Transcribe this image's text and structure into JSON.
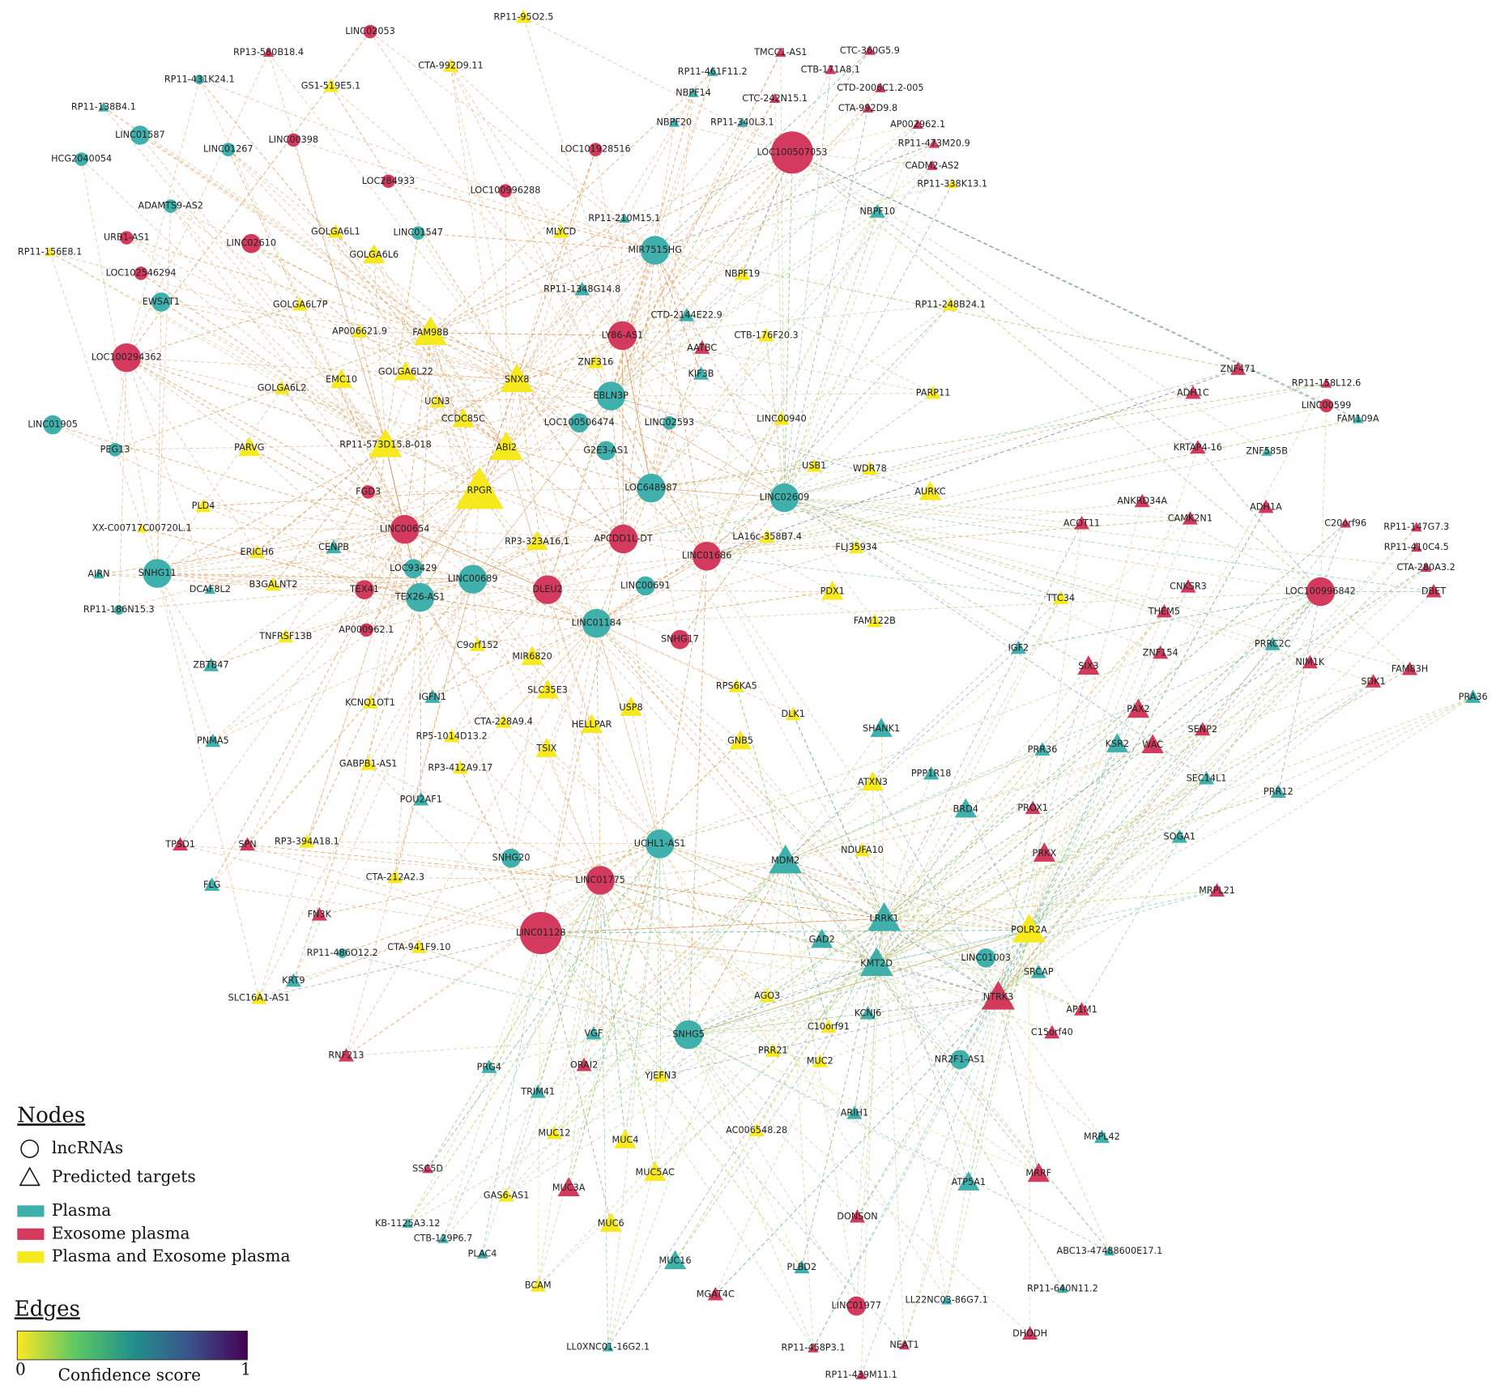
{
  "nodes": [
    {
      "label": "RP11-95O2.5"
    },
    {
      "label": "LINC02053"
    },
    {
      "label": "RP13-580B18.4"
    },
    {
      "label": "RP11-431K24.1"
    },
    {
      "label": "CTA-992D9.11"
    },
    {
      "label": "GS1-519E5.1"
    },
    {
      "label": "RP11-138B4.1"
    },
    {
      "label": "LINC01587"
    },
    {
      "label": "LINC01267"
    },
    {
      "label": "LINC00398"
    },
    {
      "label": "HCG2040054"
    },
    {
      "label": "LOC284933"
    },
    {
      "label": "LOC100996288"
    },
    {
      "label": "ADAMTS9-AS2"
    },
    {
      "label": "GOLGA6L1"
    },
    {
      "label": "LINC01547"
    },
    {
      "label": "MLYCD"
    },
    {
      "label": "URB1-AS1"
    },
    {
      "label": "LINC02610"
    },
    {
      "label": "GOLGA6L6"
    },
    {
      "label": "RP11-156E8.1"
    },
    {
      "label": "LOC102546294"
    },
    {
      "label": "EWSAT1"
    },
    {
      "label": "GOLGA6L7P"
    },
    {
      "label": "AP006621.9"
    },
    {
      "label": "FAM98B"
    },
    {
      "label": "LY86-AS1"
    },
    {
      "label": "LOC100294362"
    },
    {
      "label": "EMC10"
    },
    {
      "label": "GOLGA6L22"
    },
    {
      "label": "SNX8"
    },
    {
      "label": "GOLGA6L2"
    },
    {
      "label": "UCN3"
    },
    {
      "label": "CCDC85C"
    },
    {
      "label": "EBLN3P"
    },
    {
      "label": "LOC100506474"
    },
    {
      "label": "LINC02593"
    },
    {
      "label": "LINC01905"
    },
    {
      "label": "PEG13"
    },
    {
      "label": "PARVG"
    },
    {
      "label": "RP11-573D15.8-018"
    },
    {
      "label": "ABI2"
    },
    {
      "label": "G2E3-AS1"
    },
    {
      "label": "RPGR"
    },
    {
      "label": "LOC648987"
    },
    {
      "label": "FGD3"
    },
    {
      "label": "PLD4"
    },
    {
      "label": "LINC00654"
    },
    {
      "label": "APCDD1L-DT"
    },
    {
      "label": "RP3-323A16.1"
    },
    {
      "label": "LINC01686"
    },
    {
      "label": "XX-C00717C00720L.1"
    },
    {
      "label": "ERICH6"
    },
    {
      "label": "CENPB"
    },
    {
      "label": "SNHG11"
    },
    {
      "label": "AIRN"
    },
    {
      "label": "LOC93429"
    },
    {
      "label": "LINC00689"
    },
    {
      "label": "TEX41"
    },
    {
      "label": "DLEU2"
    },
    {
      "label": "LINC00691"
    },
    {
      "label": "DCAF8L2"
    },
    {
      "label": "B3GALNT2"
    },
    {
      "label": "TEX26-AS1"
    },
    {
      "label": "RP11-186N15.3"
    },
    {
      "label": "AP000962.1"
    },
    {
      "label": "TNFRSF13B"
    },
    {
      "label": "LINC01184"
    },
    {
      "label": "SNHG17"
    },
    {
      "label": "C9orf152"
    },
    {
      "label": "MIR6820"
    },
    {
      "label": "ZBTB47"
    },
    {
      "label": "IGFN1"
    },
    {
      "label": "KCNQ1OT1"
    },
    {
      "label": "SLC35E3"
    },
    {
      "label": "RPS6KA5"
    },
    {
      "label": "USP8"
    },
    {
      "label": "CTA-228A9.4"
    },
    {
      "label": "HELLPAR"
    },
    {
      "label": "DLK1"
    },
    {
      "label": "RP5-1014D13.2"
    },
    {
      "label": "TSIX"
    },
    {
      "label": "GNB5"
    },
    {
      "label": "SHANK1"
    },
    {
      "label": "PNMA5"
    },
    {
      "label": "GABPB1-AS1"
    },
    {
      "label": "RP3-412A9.17"
    },
    {
      "label": "PPP1R18"
    },
    {
      "label": "ATXN3"
    },
    {
      "label": "POU2AF1"
    },
    {
      "label": "BRD4"
    },
    {
      "label": "PROX1"
    },
    {
      "label": "TPSD1"
    },
    {
      "label": "SPN"
    },
    {
      "label": "RP3-394A18.1"
    },
    {
      "label": "UCHL1-AS1"
    },
    {
      "label": "SNHG20"
    },
    {
      "label": "MDM2"
    },
    {
      "label": "NDUFA10"
    },
    {
      "label": "PRKX"
    },
    {
      "label": "SOGA1"
    },
    {
      "label": "LINC01775"
    },
    {
      "label": "CTA-212A2.3"
    },
    {
      "label": "FLG"
    },
    {
      "label": "MRPL21"
    },
    {
      "label": "LINC01128"
    },
    {
      "label": "FN3K"
    },
    {
      "label": "LRRK1"
    },
    {
      "label": "GAD2"
    },
    {
      "label": "POLR2A"
    },
    {
      "label": "CTA-941F9.10"
    },
    {
      "label": "RP11-486O12.2"
    },
    {
      "label": "LINC01003"
    },
    {
      "label": "KMT2D"
    },
    {
      "label": "SRCAP"
    },
    {
      "label": "KRT9"
    },
    {
      "label": "NTRK3"
    },
    {
      "label": "AGO3"
    },
    {
      "label": "SLC16A1-AS1"
    },
    {
      "label": "AP1M1"
    },
    {
      "label": "KCNJ6"
    },
    {
      "label": "VGF"
    },
    {
      "label": "SNHG5"
    },
    {
      "label": "C10orf91"
    },
    {
      "label": "C15orf40"
    },
    {
      "label": "RNF213"
    },
    {
      "label": "PRR21"
    },
    {
      "label": "NR2F1-AS1"
    },
    {
      "label": "MUC2"
    },
    {
      "label": "PRG4"
    },
    {
      "label": "ORAI2"
    },
    {
      "label": "YJEFN3"
    },
    {
      "label": "TRIM41"
    },
    {
      "label": "ARIH1"
    },
    {
      "label": "MUC12"
    },
    {
      "label": "MUC4"
    },
    {
      "label": "AC006548.28"
    },
    {
      "label": "MRPL42"
    },
    {
      "label": "MUC5AC"
    },
    {
      "label": "SSC5D"
    },
    {
      "label": "MUC3A"
    },
    {
      "label": "GAS6-AS1"
    },
    {
      "label": "ATP5A1"
    },
    {
      "label": "MRRF"
    },
    {
      "label": "DONSON"
    },
    {
      "label": "MUC6"
    },
    {
      "label": "KB-1125A3.12"
    },
    {
      "label": "CTB-129P6.7"
    },
    {
      "label": "PLAC4"
    },
    {
      "label": "ABC13-47488600E17.1"
    },
    {
      "label": "MUC16"
    },
    {
      "label": "PLBD2"
    },
    {
      "label": "BCAM"
    },
    {
      "label": "RP11-640N11.2"
    },
    {
      "label": "MGAT4C"
    },
    {
      "label": "LINC01977"
    },
    {
      "label": "LL22NC03-86G7.1"
    },
    {
      "label": "DHODH"
    },
    {
      "label": "LL0XNC01-16G2.1"
    },
    {
      "label": "RP11-458P3.1"
    },
    {
      "label": "NEAT1"
    },
    {
      "label": "RP11-439M11.1"
    },
    {
      "label": "TMCC1-AS1"
    },
    {
      "label": "CTC-360G5.9"
    },
    {
      "label": "CTB-171A8.1"
    },
    {
      "label": "RP11-461F11.2"
    },
    {
      "label": "CTD-2006C1.2-005"
    },
    {
      "label": "NBPF14"
    },
    {
      "label": "CTC-242N15.1"
    },
    {
      "label": "CTA-992D9.8"
    },
    {
      "label": "NBPF20"
    },
    {
      "label": "RP11-340L3.1"
    },
    {
      "label": "AP002962.1"
    },
    {
      "label": "RP11-473M20.9"
    },
    {
      "label": "LOC101928516"
    },
    {
      "label": "LOC100507053"
    },
    {
      "label": "CADM2-AS2"
    },
    {
      "label": "RP11-338K13.1"
    },
    {
      "label": "NBPF10"
    },
    {
      "label": "RP11-210M15.1"
    },
    {
      "label": "MIR7515HG"
    },
    {
      "label": "NBPF19"
    },
    {
      "label": "RP11-1348G14.8"
    },
    {
      "label": "RP11-248B24.1"
    },
    {
      "label": "CTD-2144E22.9"
    },
    {
      "label": "CTB-176F20.3"
    },
    {
      "label": "AATBC"
    },
    {
      "label": "ZNF316"
    },
    {
      "label": "KIF3B"
    },
    {
      "label": "ZNF471"
    },
    {
      "label": "RP11-158L12.6"
    },
    {
      "label": "PARP11"
    },
    {
      "label": "ADH1C"
    },
    {
      "label": "LINC00599"
    },
    {
      "label": "FAM109A"
    },
    {
      "label": "LINC00940"
    },
    {
      "label": "USB1"
    },
    {
      "label": "WDR78"
    },
    {
      "label": "KRTAP4-16"
    },
    {
      "label": "ZNF585B"
    },
    {
      "label": "AURKC"
    },
    {
      "label": "LINC02609"
    },
    {
      "label": "ANKRD34A"
    },
    {
      "label": "ADH1A"
    },
    {
      "label": "ACOT11"
    },
    {
      "label": "CAMK2N1"
    },
    {
      "label": "C20orf96"
    },
    {
      "label": "RP11-147G7.3"
    },
    {
      "label": "LA16c-358B7.4"
    },
    {
      "label": "FLJ35934"
    },
    {
      "label": "RP11-410C4.5"
    },
    {
      "label": "CTA-280A3.2"
    },
    {
      "label": "PDX1"
    },
    {
      "label": "CNKSR3"
    },
    {
      "label": "LOC100996842"
    },
    {
      "label": "DBET"
    },
    {
      "label": "TTC34"
    },
    {
      "label": "THEM5"
    },
    {
      "label": "FAM122B"
    },
    {
      "label": "IGF2"
    },
    {
      "label": "PRRC2C"
    },
    {
      "label": "SIX3"
    },
    {
      "label": "ZNF154"
    },
    {
      "label": "NIM1K"
    },
    {
      "label": "FAM83H"
    },
    {
      "label": "SDK1"
    },
    {
      "label": "PRA36"
    },
    {
      "label": "PAX2"
    },
    {
      "label": "SENP2"
    },
    {
      "label": "KSR2"
    },
    {
      "label": "WAC"
    },
    {
      "label": "PRR36"
    },
    {
      "label": "SEC14L1"
    },
    {
      "label": "PRR12"
    }
  ],
  "legend": {
    "nodes_title": "Nodes",
    "shapes": [
      "lncRNAs",
      "Predicted targets"
    ],
    "colors": [
      "Plasma",
      "Exosome plasma",
      "Plasma and Exosome plasma"
    ],
    "edges_title": "Edges",
    "scale_min": 0,
    "scale_label": "Confidence score",
    "scale_max": 1
  }
}
